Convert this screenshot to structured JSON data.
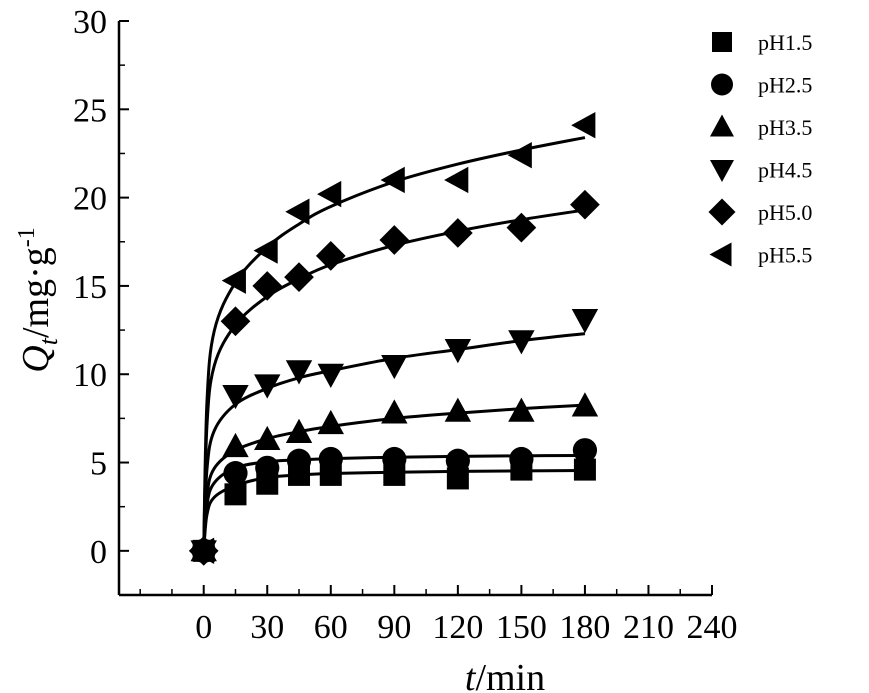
{
  "chart_data": {
    "type": "scatter",
    "xlabel": {
      "var": "t",
      "unit": "/min"
    },
    "ylabel": {
      "var": "Q",
      "sub": "t",
      "unit": "/mg·g",
      "sup": "-1"
    },
    "xlim": [
      -40,
      240
    ],
    "ylim": [
      -2.5,
      30
    ],
    "xticks": [
      0,
      30,
      60,
      90,
      120,
      150,
      180,
      210,
      240
    ],
    "yticks": [
      0,
      5,
      10,
      15,
      20,
      25,
      30
    ],
    "grid": false,
    "legend_position": "top-right",
    "x": [
      0,
      15,
      30,
      45,
      60,
      90,
      120,
      150,
      180
    ],
    "series": [
      {
        "name": "pH1.5",
        "marker": "square",
        "values": [
          0,
          3.2,
          3.8,
          4.3,
          4.3,
          4.3,
          4.1,
          4.6,
          4.6
        ],
        "fit": [
          0,
          3.7,
          4.15,
          4.3,
          4.38,
          4.45,
          4.5,
          4.53,
          4.55
        ]
      },
      {
        "name": "pH2.5",
        "marker": "circle",
        "values": [
          0,
          4.4,
          4.7,
          5.1,
          5.2,
          5.2,
          5.1,
          5.2,
          5.7
        ],
        "fit": [
          0,
          4.7,
          5.05,
          5.15,
          5.22,
          5.3,
          5.35,
          5.38,
          5.4
        ]
      },
      {
        "name": "pH3.5",
        "marker": "triangle-up",
        "values": [
          0,
          5.9,
          6.3,
          6.7,
          7.2,
          7.8,
          7.9,
          7.9,
          8.2
        ],
        "fit": [
          0,
          5.7,
          6.35,
          6.75,
          7.05,
          7.5,
          7.8,
          8.05,
          8.25
        ]
      },
      {
        "name": "pH4.5",
        "marker": "triangle-down",
        "values": [
          0,
          8.8,
          9.4,
          10.2,
          10.0,
          10.5,
          11.4,
          11.9,
          13.1
        ],
        "fit": [
          0,
          8.3,
          9.2,
          9.8,
          10.2,
          10.9,
          11.4,
          11.9,
          12.3
        ]
      },
      {
        "name": "pH5.0",
        "marker": "diamond",
        "values": [
          0,
          13.0,
          15.0,
          15.5,
          16.7,
          17.6,
          18.0,
          18.3,
          19.6
        ],
        "fit": [
          0,
          12.8,
          14.4,
          15.4,
          16.2,
          17.3,
          18.1,
          18.75,
          19.3
        ]
      },
      {
        "name": "pH5.5",
        "marker": "triangle-left",
        "values": [
          0,
          15.3,
          17.0,
          19.2,
          20.2,
          21.0,
          21.0,
          22.4,
          24.1
        ],
        "fit": [
          0,
          15.2,
          17.2,
          18.5,
          19.5,
          20.9,
          21.9,
          22.7,
          23.4
        ]
      }
    ]
  }
}
